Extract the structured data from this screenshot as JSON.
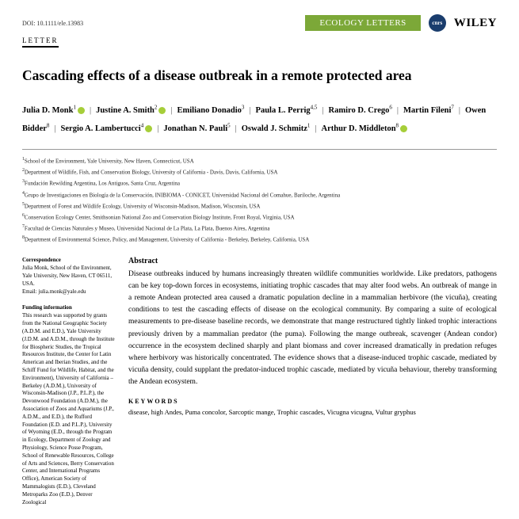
{
  "doi": "DOI: 10.1111/ele.13983",
  "journal_badge": "ECOLOGY LETTERS",
  "cnrs": "cnrs",
  "publisher": "WILEY",
  "article_type": "LETTER",
  "title": "Cascading effects of a disease outbreak in a remote protected area",
  "authors": [
    {
      "name": "Julia D. Monk",
      "sup": "1",
      "orcid": true
    },
    {
      "name": "Justine A. Smith",
      "sup": "2",
      "orcid": true
    },
    {
      "name": "Emiliano Donadio",
      "sup": "3",
      "orcid": false
    },
    {
      "name": "Paula L. Perrig",
      "sup": "4,5",
      "orcid": false
    },
    {
      "name": "Ramiro D. Crego",
      "sup": "6",
      "orcid": false
    },
    {
      "name": "Martin Fileni",
      "sup": "7",
      "orcid": false
    },
    {
      "name": "Owen Bidder",
      "sup": "8",
      "orcid": false
    },
    {
      "name": "Sergio A. Lambertucci",
      "sup": "4",
      "orcid": true
    },
    {
      "name": "Jonathan N. Pauli",
      "sup": "5",
      "orcid": false
    },
    {
      "name": "Oswald J. Schmitz",
      "sup": "1",
      "orcid": false
    },
    {
      "name": "Arthur D. Middleton",
      "sup": "8",
      "orcid": true
    }
  ],
  "affiliations": [
    "School of the Environment, Yale University, New Haven, Connecticut, USA",
    "Department of Wildlife, Fish, and Conservation Biology, University of California - Davis, Davis, California, USA",
    "Fundación Rewilding Argentina, Los Antiguos, Santa Cruz, Argentina",
    "Grupo de Investigaciones en Biología de la Conservación, INIBIOMA - CONICET, Universidad Nacional del Comahue, Bariloche, Argentina",
    "Department of Forest and Wildlife Ecology, University of Wisconsin-Madison, Madison, Wisconsin, USA",
    "Conservation Ecology Center, Smithsonian National Zoo and Conservation Biology Institute, Front Royal, Virginia, USA",
    "Facultad de Ciencias Naturales y Museo, Universidad Nacional de La Plata, La Plata, Buenos Aires, Argentina",
    "Department of Environmental Science, Policy, and Management, University of California - Berkeley, Berkeley, California, USA"
  ],
  "correspondence": {
    "heading": "Correspondence",
    "text": "Julia Monk, School of the Environment, Yale University, New Haven, CT 06511, USA.",
    "email": "Email: julia.monk@yale.edu"
  },
  "funding": {
    "heading": "Funding information",
    "text": "This research was supported by grants from the National Geographic Society (A.D.M. and E.D.), Yale University (J.D.M. and A.D.M., through the Institute for Biospheric Studies, the Tropical Resources Institute, the Center for Latin American and Iberian Studies, and the Schiff Fund for Wildlife, Habitat, and the Environment), University of California – Berkeley (A.D.M.), University of Wisconsin-Madison (J.P., P.L.P.), the Devonwood Foundation (A.D.M.), the Association of Zoos and Aquariums (J.P., A.D.M., and E.D.), the Rufford Foundation (E.D. and P.L.P.), University of Wyoming (E.D., through the Program in Ecology, Department of Zoology and Physiology, Science Posse Program, School of Renewable Resources, College of Arts and Sciences, Berry Conservation Center, and International Programs Office), American Society of Mammalogists (E.D.), Cleveland Metroparks Zoo (E.D.), Denver Zoological"
  },
  "abstract": {
    "heading": "Abstract",
    "text": "Disease outbreaks induced by humans increasingly threaten wildlife communities worldwide. Like predators, pathogens can be key top-down forces in ecosystems, initiating trophic cascades that may alter food webs. An outbreak of mange in a remote Andean protected area caused a dramatic population decline in a mammalian herbivore (the vicuña), creating conditions to test the cascading effects of disease on the ecological community. By comparing a suite of ecological measurements to pre-disease baseline records, we demonstrate that mange restructured tightly linked trophic interactions previously driven by a mammalian predator (the puma). Following the mange outbreak, scavenger (Andean condor) occurrence in the ecosystem declined sharply and plant biomass and cover increased dramatically in predation refuges where herbivory was historically concentrated. The evidence shows that a disease-induced trophic cascade, mediated by vicuña density, could supplant the predator-induced trophic cascade, mediated by vicuña behaviour, thereby transforming the Andean ecosystem."
  },
  "keywords": {
    "heading": "KEYWORDS",
    "text": "disease, high Andes, Puma concolor, Sarcoptic mange, Trophic cascades, Vicugna vicugna, Vultur gryphus"
  }
}
